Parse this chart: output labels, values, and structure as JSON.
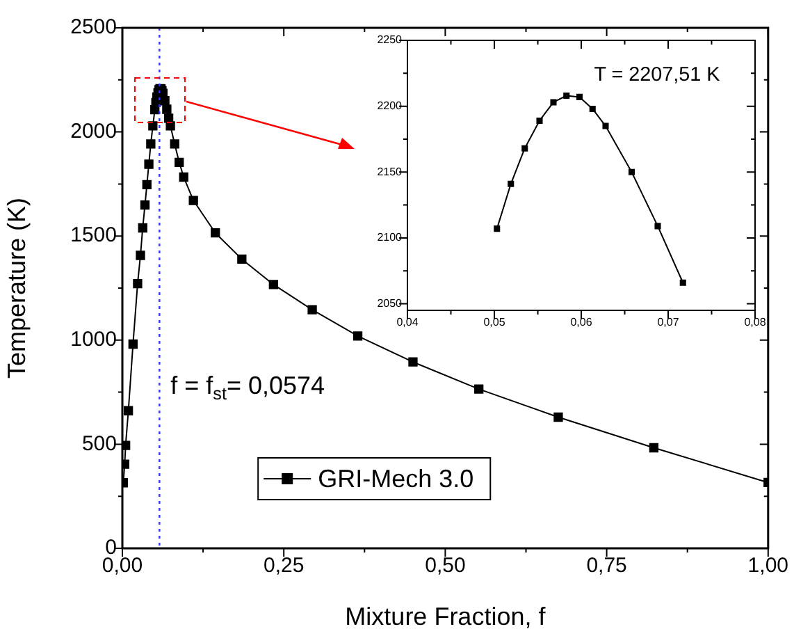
{
  "chart_data": [
    {
      "type": "line",
      "xlabel": "Mixture Fraction, f",
      "ylabel": "Temperature (K)",
      "x": [
        0.0014,
        0.0036,
        0.005,
        0.0093,
        0.0165,
        0.0236,
        0.028,
        0.0315,
        0.035,
        0.038,
        0.041,
        0.044,
        0.0472,
        0.0503,
        0.0519,
        0.0535,
        0.0552,
        0.0568,
        0.0583,
        0.0598,
        0.0613,
        0.0628,
        0.0658,
        0.0688,
        0.0717,
        0.0744,
        0.081,
        0.088,
        0.095,
        0.11,
        0.144,
        0.185,
        0.234,
        0.294,
        0.3645,
        0.45,
        0.552,
        0.675,
        0.823,
        1.0
      ],
      "series": [
        {
          "name": "GRI-Mech 3.0",
          "color": "#000000",
          "values": [
            315,
            404,
            494,
            661,
            981,
            1271,
            1407,
            1539,
            1649,
            1747,
            1845,
            1942,
            2029,
            2107,
            2141,
            2168,
            2189,
            2203,
            2208,
            2207,
            2198,
            2185,
            2150,
            2109,
            2066,
            2029,
            1942,
            1854,
            1783,
            1671,
            1515,
            1389,
            1267,
            1146,
            1020,
            895,
            765,
            630,
            483,
            316
          ]
        }
      ],
      "xlim": [
        0,
        1
      ],
      "ylim": [
        0,
        2500
      ],
      "xticks": [
        {
          "value": 0,
          "label": "0,00"
        },
        {
          "value": 0.125,
          "label": null
        },
        {
          "value": 0.25,
          "label": "0,25"
        },
        {
          "value": 0.375,
          "label": null
        },
        {
          "value": 0.5,
          "label": "0,50"
        },
        {
          "value": 0.625,
          "label": null
        },
        {
          "value": 0.75,
          "label": "0,75"
        },
        {
          "value": 0.875,
          "label": null
        },
        {
          "value": 1,
          "label": "1,00"
        }
      ],
      "yticks": [
        0,
        {
          "value": 250,
          "label": null
        },
        500,
        {
          "value": 750,
          "label": null
        },
        1000,
        {
          "value": 1250,
          "label": null
        },
        1500,
        {
          "value": 1750,
          "label": null
        },
        2000,
        {
          "value": 2250,
          "label": null
        },
        2500
      ],
      "ref_lines": [
        {
          "axis": "x",
          "value": 0.0574,
          "label": "f = f$_{st}$= 0,0574",
          "color": "#3333ff",
          "line_style": "dotted"
        }
      ],
      "marker": "square",
      "line_style": "solid",
      "grid": false,
      "legend": "bottom"
    },
    {
      "type": "line",
      "x": [
        0.0503,
        0.0519,
        0.0535,
        0.0552,
        0.0568,
        0.0583,
        0.0598,
        0.0613,
        0.0628,
        0.0658,
        0.0688,
        0.0717
      ],
      "series": [
        {
          "color": "#000000",
          "values": [
            2107,
            2141,
            2168,
            2189,
            2203,
            2208,
            2207,
            2198,
            2185,
            2150,
            2109,
            2066
          ]
        }
      ],
      "xlim": [
        0.04,
        0.08
      ],
      "ylim": [
        2045,
        2250
      ],
      "xticks": [
        {
          "value": 0.04,
          "label": "0,04"
        },
        {
          "value": 0.045,
          "label": null
        },
        {
          "value": 0.05,
          "label": "0,05"
        },
        {
          "value": 0.055,
          "label": null
        },
        {
          "value": 0.06,
          "label": "0,06"
        },
        {
          "value": 0.065,
          "label": null
        },
        {
          "value": 0.07,
          "label": "0,07"
        },
        {
          "value": 0.075,
          "label": null
        },
        {
          "value": 0.08,
          "label": "0,08"
        }
      ],
      "yticks": [
        2050,
        {
          "value": 2075,
          "label": null
        },
        2100,
        {
          "value": 2125,
          "label": null
        },
        2150,
        {
          "value": 2175,
          "label": null
        },
        2200,
        {
          "value": 2225,
          "label": null
        },
        2250
      ],
      "annotations": [
        "T = 2207,51 K"
      ],
      "marker": "square",
      "line_style": "solid",
      "grid": false
    }
  ]
}
